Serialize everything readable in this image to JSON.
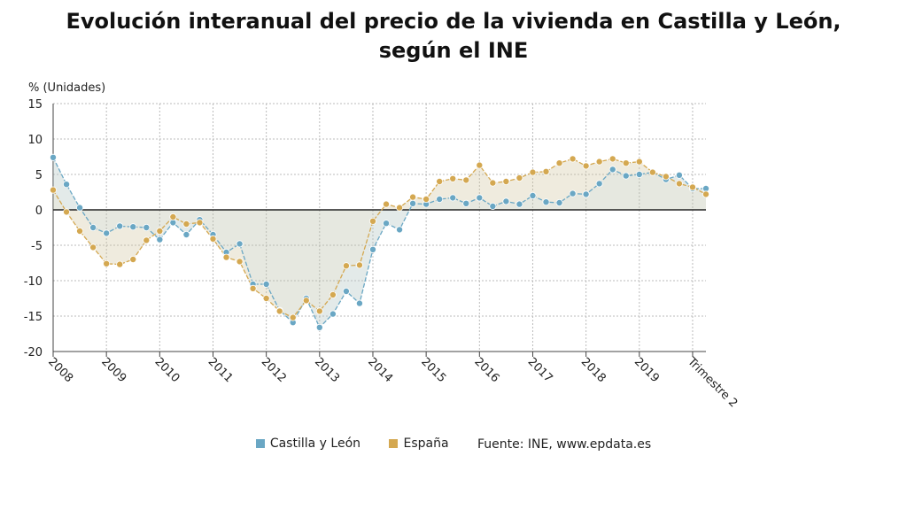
{
  "title_line1": "Evolución interanual del precio de la vivienda en Castilla y León,",
  "title_line2": "según el INE",
  "source": "Fuente: INE, www.epdata.es",
  "colors": {
    "castilla": "#6aa7c4",
    "espana": "#d4a851",
    "zero_line": "#222222",
    "grid": "#bbbbbb"
  },
  "chart_data": {
    "type": "line",
    "ylabel": "% (Unidades)",
    "ylim": [
      -20,
      15
    ],
    "yticks": [
      15,
      10,
      5,
      0,
      -5,
      -10,
      -15,
      -20
    ],
    "xticks": [
      "2008",
      "2009",
      "2010",
      "2011",
      "2012",
      "2013",
      "2014",
      "2015",
      "2016",
      "2017",
      "2018",
      "2019",
      "Trimestre 2"
    ],
    "grid": true,
    "legend": "bottom",
    "series": [
      {
        "name": "Castilla y León",
        "values": [
          7.4,
          3.6,
          0.3,
          -2.5,
          -3.3,
          -2.3,
          -2.4,
          -2.5,
          -4.2,
          -1.8,
          -3.5,
          -1.4,
          -3.5,
          -6,
          -4.8,
          -10.5,
          -10.5,
          -14.2,
          -15.9,
          -12.5,
          -16.6,
          -14.7,
          -11.5,
          -13.2,
          -5.6,
          -1.9,
          -2.8,
          0.9,
          0.8,
          1.5,
          1.7,
          0.9,
          1.7,
          0.5,
          1.2,
          0.8,
          2,
          1.1,
          1,
          2.3,
          2.2,
          3.7,
          5.7,
          4.8,
          5,
          5.3,
          4.3,
          4.9,
          3,
          3
        ]
      },
      {
        "name": "España",
        "values": [
          2.8,
          -0.3,
          -3,
          -5.3,
          -7.6,
          -7.7,
          -7,
          -4.3,
          -3,
          -1,
          -2,
          -1.8,
          -4.1,
          -6.7,
          -7.3,
          -11.1,
          -12.5,
          -14.3,
          -15.2,
          -12.8,
          -14.3,
          -12,
          -7.9,
          -7.8,
          -1.6,
          0.8,
          0.3,
          1.8,
          1.5,
          4,
          4.4,
          4.2,
          6.3,
          3.8,
          4,
          4.5,
          5.3,
          5.4,
          6.6,
          7.2,
          6.2,
          6.8,
          7.2,
          6.6,
          6.8,
          5.3,
          4.7,
          3.7,
          3.2,
          2.2
        ]
      }
    ]
  }
}
